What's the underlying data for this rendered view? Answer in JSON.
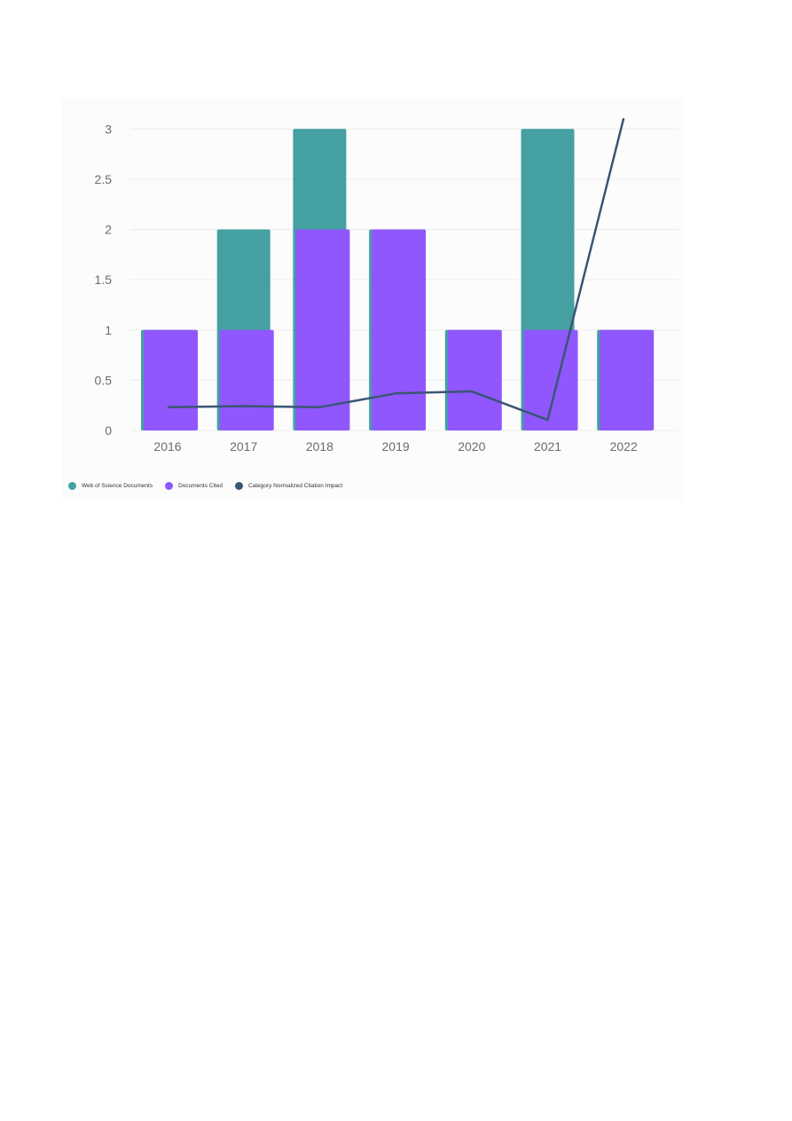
{
  "chart_data": {
    "type": "bar",
    "categories": [
      "2016",
      "2017",
      "2018",
      "2019",
      "2020",
      "2021",
      "2022"
    ],
    "series": [
      {
        "name": "Web of Science Documents",
        "type": "bar",
        "axis": "left",
        "color": "#45a0a2",
        "values": [
          1,
          2,
          3,
          2,
          1,
          3,
          1
        ]
      },
      {
        "name": "Documents Cited",
        "type": "bar",
        "axis": "left",
        "color": "#8f57fd",
        "values": [
          1,
          1,
          2,
          2,
          1,
          1,
          1
        ]
      },
      {
        "name": "Category Normalized Citation Impact",
        "type": "line",
        "axis": "right",
        "color": "#3b5673",
        "values": [
          0.22,
          0.23,
          0.22,
          0.35,
          0.37,
          0.1,
          2.95
        ]
      }
    ],
    "left_axis": {
      "ticks": [
        "0",
        "0.5",
        "1",
        "1.5",
        "2",
        "2.5",
        "3"
      ],
      "range": [
        0,
        3.25
      ]
    },
    "right_axis": {
      "ticks": [
        "0.0",
        "0.5",
        "1.0",
        "1.5",
        "2.0",
        "2.5"
      ],
      "range": [
        0,
        2.7
      ]
    },
    "grid": true,
    "legend_position": "bottom-left"
  }
}
